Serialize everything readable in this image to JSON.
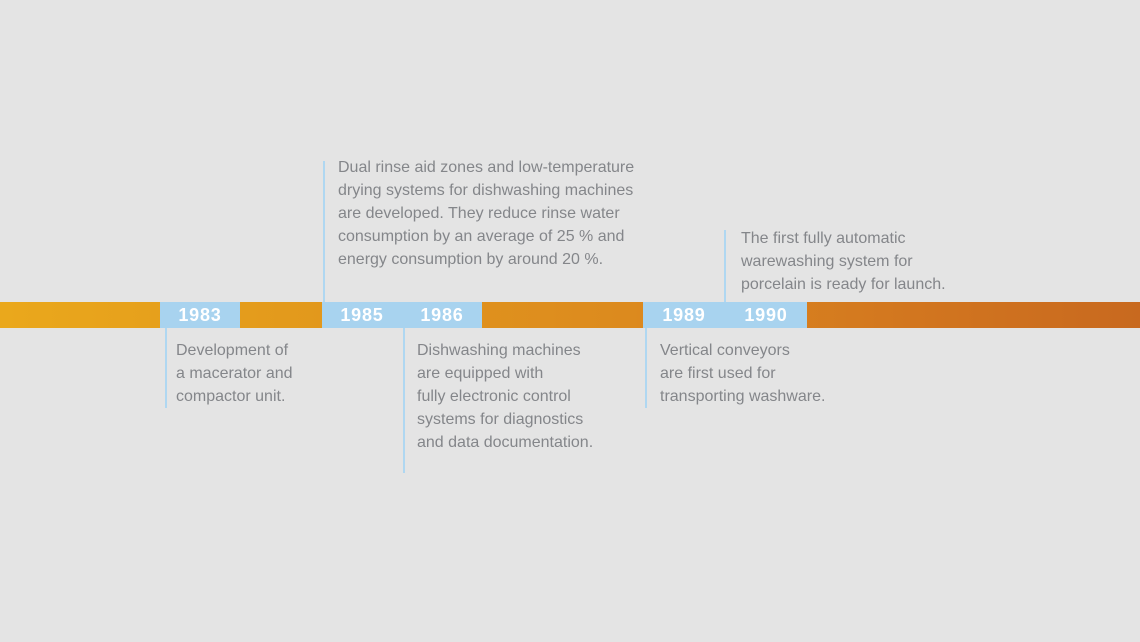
{
  "background_color": "#E4E4E4",
  "timeline": {
    "bar_gradient_start_color": "#EAA81C",
    "bar_gradient_end_color": "#C8691F",
    "year_box_color": "#A8D3EF",
    "connector_line_color": "#AFD7F1",
    "year_text_color": "#FFFFFF",
    "description_text_color": "#84868A",
    "events": [
      {
        "year": "1983",
        "position": "below",
        "description": "Development of\na macerator and\ncompactor unit."
      },
      {
        "year": "1985",
        "position": "above",
        "description": "Dual rinse aid zones and low-temperature\ndrying systems for dishwashing machines\nare developed. They reduce rinse water\nconsumption by an average of 25 % and\nenergy consumption by around 20 %."
      },
      {
        "year": "1986",
        "position": "below",
        "description": "Dishwashing machines\nare equipped with\nfully electronic control\nsystems for diagnostics\nand data documentation."
      },
      {
        "year": "1989",
        "position": "below",
        "description": "Vertical conveyors\nare first used for\ntransporting washware."
      },
      {
        "year": "1990",
        "position": "above",
        "description": "The first fully automatic\nwarewashing system for\nporcelain is ready for launch."
      }
    ]
  }
}
